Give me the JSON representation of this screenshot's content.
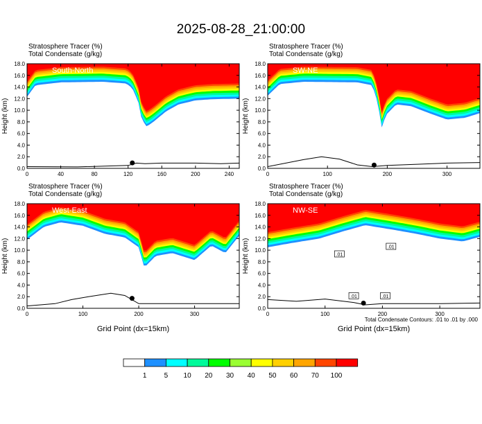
{
  "page_title": "2025-08-28_21:00:00",
  "footnote": "Total Condensate Contours: .01 to .01 by .000",
  "colorbar": {
    "labels": [
      "1",
      "5",
      "10",
      "20",
      "30",
      "40",
      "50",
      "60",
      "70",
      "100"
    ],
    "colors": [
      "#ffffff",
      "#1e90ff",
      "#00ffff",
      "#00fa9a",
      "#00ff00",
      "#9aff32",
      "#ffff00",
      "#ffd000",
      "#ffa500",
      "#ff4500",
      "#ff0000"
    ]
  },
  "chart_data": [
    {
      "type": "heatmap",
      "label": "South-North",
      "title_line1": "Stratosphere Tracer   (%)",
      "title_line2": "Total Condensate   (g/kg)",
      "ylabel": "Height (km)",
      "xlabel": "",
      "xlim": [
        0,
        252
      ],
      "ylim": [
        0,
        18
      ],
      "xticks": [
        0,
        40,
        80,
        120,
        160,
        200,
        240
      ],
      "yticks": [
        "0.0",
        "2.0",
        "4.0",
        "6.0",
        "8.0",
        "10.0",
        "12.0",
        "14.0",
        "16.0",
        "18.0"
      ],
      "tracer_top_profile_km": [
        [
          0,
          12.3
        ],
        [
          10,
          14.3
        ],
        [
          40,
          14.8
        ],
        [
          90,
          14.9
        ],
        [
          118,
          14.6
        ],
        [
          125,
          13.8
        ],
        [
          132,
          11.5
        ],
        [
          136,
          8.5
        ],
        [
          142,
          7.2
        ],
        [
          150,
          8.0
        ],
        [
          165,
          9.8
        ],
        [
          180,
          11.0
        ],
        [
          200,
          11.7
        ],
        [
          220,
          11.9
        ],
        [
          252,
          12.0
        ]
      ],
      "terrain_km": [
        [
          0,
          0.3
        ],
        [
          60,
          0.25
        ],
        [
          120,
          0.5
        ],
        [
          130,
          0.9
        ],
        [
          140,
          0.8
        ],
        [
          160,
          0.9
        ],
        [
          200,
          0.9
        ],
        [
          230,
          0.8
        ],
        [
          252,
          0.9
        ]
      ],
      "marker_x": 125
    },
    {
      "type": "heatmap",
      "label": "SW-NE",
      "title_line1": "Stratosphere Tracer   (%)",
      "title_line2": "Total Condensate   (g/kg)",
      "ylabel": "Height (km)",
      "xlabel": "",
      "xlim": [
        0,
        355
      ],
      "ylim": [
        0,
        18
      ],
      "xticks": [
        0,
        100,
        200,
        300
      ],
      "yticks": [
        "0.0",
        "2.0",
        "4.0",
        "6.0",
        "8.0",
        "10.0",
        "12.0",
        "14.0",
        "16.0",
        "18.0"
      ],
      "tracer_top_profile_km": [
        [
          0,
          12.5
        ],
        [
          20,
          14.5
        ],
        [
          60,
          14.9
        ],
        [
          150,
          14.8
        ],
        [
          175,
          14.3
        ],
        [
          185,
          11.0
        ],
        [
          190,
          6.8
        ],
        [
          198,
          9.2
        ],
        [
          215,
          11.0
        ],
        [
          240,
          10.7
        ],
        [
          270,
          9.5
        ],
        [
          300,
          8.4
        ],
        [
          330,
          8.7
        ],
        [
          355,
          9.5
        ]
      ],
      "terrain_km": [
        [
          0,
          0.3
        ],
        [
          60,
          1.5
        ],
        [
          90,
          2.0
        ],
        [
          120,
          1.6
        ],
        [
          150,
          0.6
        ],
        [
          175,
          0.3
        ],
        [
          200,
          0.5
        ],
        [
          250,
          0.7
        ],
        [
          300,
          0.9
        ],
        [
          355,
          1.0
        ]
      ],
      "marker_x": 178
    },
    {
      "type": "heatmap",
      "label": "West-East",
      "title_line1": "Stratosphere Tracer   (%)",
      "title_line2": "Total Condensate   (g/kg)",
      "ylabel": "Height (km)",
      "xlabel": "Grid Point (dx=15km)",
      "xlim": [
        0,
        380
      ],
      "ylim": [
        0,
        18
      ],
      "xticks": [
        0,
        100,
        200,
        300
      ],
      "yticks": [
        "0.0",
        "2.0",
        "4.0",
        "6.0",
        "8.0",
        "10.0",
        "12.0",
        "14.0",
        "16.0",
        "18.0"
      ],
      "tracer_top_profile_km": [
        [
          0,
          11.8
        ],
        [
          30,
          14.0
        ],
        [
          60,
          14.8
        ],
        [
          100,
          14.2
        ],
        [
          140,
          12.8
        ],
        [
          175,
          12.2
        ],
        [
          200,
          10.5
        ],
        [
          210,
          7.0
        ],
        [
          230,
          9.0
        ],
        [
          260,
          9.5
        ],
        [
          300,
          8.3
        ],
        [
          330,
          10.8
        ],
        [
          355,
          9.5
        ],
        [
          380,
          12.5
        ]
      ],
      "terrain_km": [
        [
          0,
          0.4
        ],
        [
          50,
          0.8
        ],
        [
          80,
          1.5
        ],
        [
          110,
          2.0
        ],
        [
          150,
          2.6
        ],
        [
          175,
          2.2
        ],
        [
          200,
          0.8
        ],
        [
          250,
          0.8
        ],
        [
          300,
          0.8
        ],
        [
          380,
          0.8
        ]
      ],
      "marker_x": 188
    },
    {
      "type": "heatmap",
      "label": "NW-SE",
      "title_line1": "Stratosphere Tracer   (%)",
      "title_line2": "Total Condensate   (g/kg)",
      "ylabel": "Height (km)",
      "xlabel": "Grid Point (dx=15km)",
      "xlim": [
        0,
        370
      ],
      "ylim": [
        0,
        18
      ],
      "xticks": [
        0,
        100,
        200,
        300
      ],
      "yticks": [
        "0.0",
        "2.0",
        "4.0",
        "6.0",
        "8.0",
        "10.0",
        "12.0",
        "14.0",
        "16.0",
        "18.0"
      ],
      "tracer_top_profile_km": [
        [
          0,
          10.5
        ],
        [
          40,
          11.2
        ],
        [
          90,
          12.0
        ],
        [
          130,
          13.2
        ],
        [
          170,
          14.3
        ],
        [
          220,
          13.5
        ],
        [
          260,
          12.8
        ],
        [
          300,
          12.0
        ],
        [
          340,
          11.5
        ],
        [
          370,
          12.3
        ]
      ],
      "terrain_km": [
        [
          0,
          1.5
        ],
        [
          50,
          1.2
        ],
        [
          100,
          1.6
        ],
        [
          150,
          1.0
        ],
        [
          170,
          0.6
        ],
        [
          200,
          0.8
        ],
        [
          250,
          0.8
        ],
        [
          300,
          0.8
        ],
        [
          370,
          0.9
        ]
      ],
      "contour_labels": [
        ".01",
        ".01",
        ".01",
        ".01"
      ],
      "marker_x": 167
    }
  ]
}
